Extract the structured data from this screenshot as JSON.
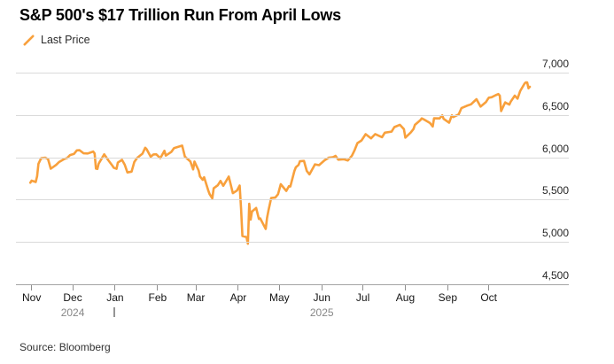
{
  "title": "S&P 500's $17 Trillion Run From April Lows",
  "legend": {
    "label": "Last Price"
  },
  "source": "Source: Bloomberg",
  "chart_data": {
    "type": "line",
    "title": "S&P 500's $17 Trillion Run From April Lows",
    "series_name": "Last Price",
    "line_color": "#F8A03C",
    "grid": true,
    "legend_position": "top-left",
    "ylim": [
      4500,
      7000
    ],
    "y_axis_side": "right",
    "y_ticks": [
      {
        "value": 7000,
        "label": "7,000"
      },
      {
        "value": 6500,
        "label": "6,500"
      },
      {
        "value": 6000,
        "label": "6,000"
      },
      {
        "value": 5500,
        "label": "5,500"
      },
      {
        "value": 5000,
        "label": "5,000"
      },
      {
        "value": 4500,
        "label": "4,500"
      }
    ],
    "x_ticks": [
      {
        "date": "2024-11-01",
        "label": "Nov"
      },
      {
        "date": "2024-12-01",
        "label": "Dec"
      },
      {
        "date": "2025-01-01",
        "label": "Jan"
      },
      {
        "date": "2025-02-01",
        "label": "Feb"
      },
      {
        "date": "2025-03-01",
        "label": "Mar"
      },
      {
        "date": "2025-04-01",
        "label": "Apr"
      },
      {
        "date": "2025-05-01",
        "label": "May"
      },
      {
        "date": "2025-06-01",
        "label": "Jun"
      },
      {
        "date": "2025-07-01",
        "label": "Jul"
      },
      {
        "date": "2025-08-01",
        "label": "Aug"
      },
      {
        "date": "2025-09-01",
        "label": "Sep"
      },
      {
        "date": "2025-10-01",
        "label": "Oct"
      }
    ],
    "year_labels": [
      {
        "date": "2024-12-01",
        "label": "2024"
      },
      {
        "date": "2025-06-01",
        "label": "2025"
      }
    ],
    "year_separator_date": "2025-01-01",
    "points": [
      [
        "2024-10-31",
        5705
      ],
      [
        "2024-11-01",
        5729
      ],
      [
        "2024-11-04",
        5713
      ],
      [
        "2024-11-05",
        5783
      ],
      [
        "2024-11-06",
        5929
      ],
      [
        "2024-11-08",
        5996
      ],
      [
        "2024-11-11",
        6001
      ],
      [
        "2024-11-13",
        5985
      ],
      [
        "2024-11-15",
        5871
      ],
      [
        "2024-11-19",
        5917
      ],
      [
        "2024-11-21",
        5949
      ],
      [
        "2024-11-25",
        5987
      ],
      [
        "2024-11-27",
        5998
      ],
      [
        "2024-11-29",
        6032
      ],
      [
        "2024-12-02",
        6047
      ],
      [
        "2024-12-04",
        6087
      ],
      [
        "2024-12-06",
        6090
      ],
      [
        "2024-12-09",
        6053
      ],
      [
        "2024-12-12",
        6051
      ],
      [
        "2024-12-16",
        6074
      ],
      [
        "2024-12-17",
        6051
      ],
      [
        "2024-12-18",
        5872
      ],
      [
        "2024-12-19",
        5867
      ],
      [
        "2024-12-20",
        5931
      ],
      [
        "2024-12-24",
        6040
      ],
      [
        "2024-12-27",
        5971
      ],
      [
        "2024-12-30",
        5907
      ],
      [
        "2024-12-31",
        5882
      ],
      [
        "2025-01-02",
        5869
      ],
      [
        "2025-01-03",
        5943
      ],
      [
        "2025-01-06",
        5975
      ],
      [
        "2025-01-08",
        5918
      ],
      [
        "2025-01-10",
        5827
      ],
      [
        "2025-01-13",
        5836
      ],
      [
        "2025-01-15",
        5950
      ],
      [
        "2025-01-17",
        5997
      ],
      [
        "2025-01-21",
        6049
      ],
      [
        "2025-01-23",
        6119
      ],
      [
        "2025-01-24",
        6101
      ],
      [
        "2025-01-27",
        6012
      ],
      [
        "2025-01-29",
        6039
      ],
      [
        "2025-01-31",
        6041
      ],
      [
        "2025-02-03",
        5995
      ],
      [
        "2025-02-06",
        6083
      ],
      [
        "2025-02-07",
        6026
      ],
      [
        "2025-02-11",
        6069
      ],
      [
        "2025-02-13",
        6115
      ],
      [
        "2025-02-19",
        6144
      ],
      [
        "2025-02-21",
        6013
      ],
      [
        "2025-02-25",
        5955
      ],
      [
        "2025-02-27",
        5862
      ],
      [
        "2025-02-28",
        5955
      ],
      [
        "2025-03-03",
        5850
      ],
      [
        "2025-03-04",
        5778
      ],
      [
        "2025-03-06",
        5739
      ],
      [
        "2025-03-07",
        5770
      ],
      [
        "2025-03-10",
        5615
      ],
      [
        "2025-03-11",
        5572
      ],
      [
        "2025-03-13",
        5521
      ],
      [
        "2025-03-14",
        5639
      ],
      [
        "2025-03-17",
        5675
      ],
      [
        "2025-03-19",
        5726
      ],
      [
        "2025-03-21",
        5668
      ],
      [
        "2025-03-25",
        5777
      ],
      [
        "2025-03-28",
        5581
      ],
      [
        "2025-03-31",
        5612
      ],
      [
        "2025-04-02",
        5671
      ],
      [
        "2025-04-03",
        5396
      ],
      [
        "2025-04-04",
        5074
      ],
      [
        "2025-04-07",
        5062
      ],
      [
        "2025-04-08",
        4983
      ],
      [
        "2025-04-09",
        5457
      ],
      [
        "2025-04-10",
        5268
      ],
      [
        "2025-04-11",
        5363
      ],
      [
        "2025-04-14",
        5406
      ],
      [
        "2025-04-16",
        5276
      ],
      [
        "2025-04-17",
        5283
      ],
      [
        "2025-04-21",
        5158
      ],
      [
        "2025-04-22",
        5288
      ],
      [
        "2025-04-23",
        5376
      ],
      [
        "2025-04-25",
        5525
      ],
      [
        "2025-04-28",
        5529
      ],
      [
        "2025-04-30",
        5569
      ],
      [
        "2025-05-02",
        5687
      ],
      [
        "2025-05-06",
        5607
      ],
      [
        "2025-05-08",
        5664
      ],
      [
        "2025-05-09",
        5660
      ],
      [
        "2025-05-12",
        5844
      ],
      [
        "2025-05-13",
        5887
      ],
      [
        "2025-05-15",
        5916
      ],
      [
        "2025-05-16",
        5958
      ],
      [
        "2025-05-19",
        5963
      ],
      [
        "2025-05-21",
        5845
      ],
      [
        "2025-05-23",
        5803
      ],
      [
        "2025-05-27",
        5922
      ],
      [
        "2025-05-30",
        5912
      ],
      [
        "2025-06-03",
        5970
      ],
      [
        "2025-06-06",
        6000
      ],
      [
        "2025-06-09",
        6006
      ],
      [
        "2025-06-11",
        6022
      ],
      [
        "2025-06-13",
        5977
      ],
      [
        "2025-06-17",
        5983
      ],
      [
        "2025-06-20",
        5968
      ],
      [
        "2025-06-23",
        6025
      ],
      [
        "2025-06-25",
        6092
      ],
      [
        "2025-06-27",
        6173
      ],
      [
        "2025-06-30",
        6205
      ],
      [
        "2025-07-03",
        6279
      ],
      [
        "2025-07-07",
        6230
      ],
      [
        "2025-07-10",
        6280
      ],
      [
        "2025-07-15",
        6244
      ],
      [
        "2025-07-17",
        6297
      ],
      [
        "2025-07-22",
        6310
      ],
      [
        "2025-07-24",
        6363
      ],
      [
        "2025-07-28",
        6390
      ],
      [
        "2025-07-31",
        6339
      ],
      [
        "2025-08-01",
        6238
      ],
      [
        "2025-08-05",
        6299
      ],
      [
        "2025-08-07",
        6340
      ],
      [
        "2025-08-08",
        6389
      ],
      [
        "2025-08-12",
        6446
      ],
      [
        "2025-08-13",
        6466
      ],
      [
        "2025-08-15",
        6450
      ],
      [
        "2025-08-19",
        6411
      ],
      [
        "2025-08-21",
        6370
      ],
      [
        "2025-08-22",
        6467
      ],
      [
        "2025-08-26",
        6466
      ],
      [
        "2025-08-28",
        6501
      ],
      [
        "2025-08-29",
        6460
      ],
      [
        "2025-09-02",
        6415
      ],
      [
        "2025-09-04",
        6502
      ],
      [
        "2025-09-05",
        6481
      ],
      [
        "2025-09-09",
        6513
      ],
      [
        "2025-09-11",
        6587
      ],
      [
        "2025-09-15",
        6615
      ],
      [
        "2025-09-18",
        6632
      ],
      [
        "2025-09-22",
        6693
      ],
      [
        "2025-09-25",
        6605
      ],
      [
        "2025-09-29",
        6661
      ],
      [
        "2025-09-30",
        6688
      ],
      [
        "2025-10-01",
        6711
      ],
      [
        "2025-10-03",
        6716
      ],
      [
        "2025-10-06",
        6740
      ],
      [
        "2025-10-08",
        6754
      ],
      [
        "2025-10-09",
        6735
      ],
      [
        "2025-10-10",
        6553
      ],
      [
        "2025-10-13",
        6655
      ],
      [
        "2025-10-14",
        6645
      ],
      [
        "2025-10-16",
        6629
      ],
      [
        "2025-10-17",
        6664
      ],
      [
        "2025-10-20",
        6735
      ],
      [
        "2025-10-22",
        6699
      ],
      [
        "2025-10-24",
        6792
      ],
      [
        "2025-10-27",
        6875
      ],
      [
        "2025-10-28",
        6891
      ],
      [
        "2025-10-29",
        6891
      ],
      [
        "2025-10-30",
        6822
      ],
      [
        "2025-10-31",
        6840
      ]
    ]
  }
}
